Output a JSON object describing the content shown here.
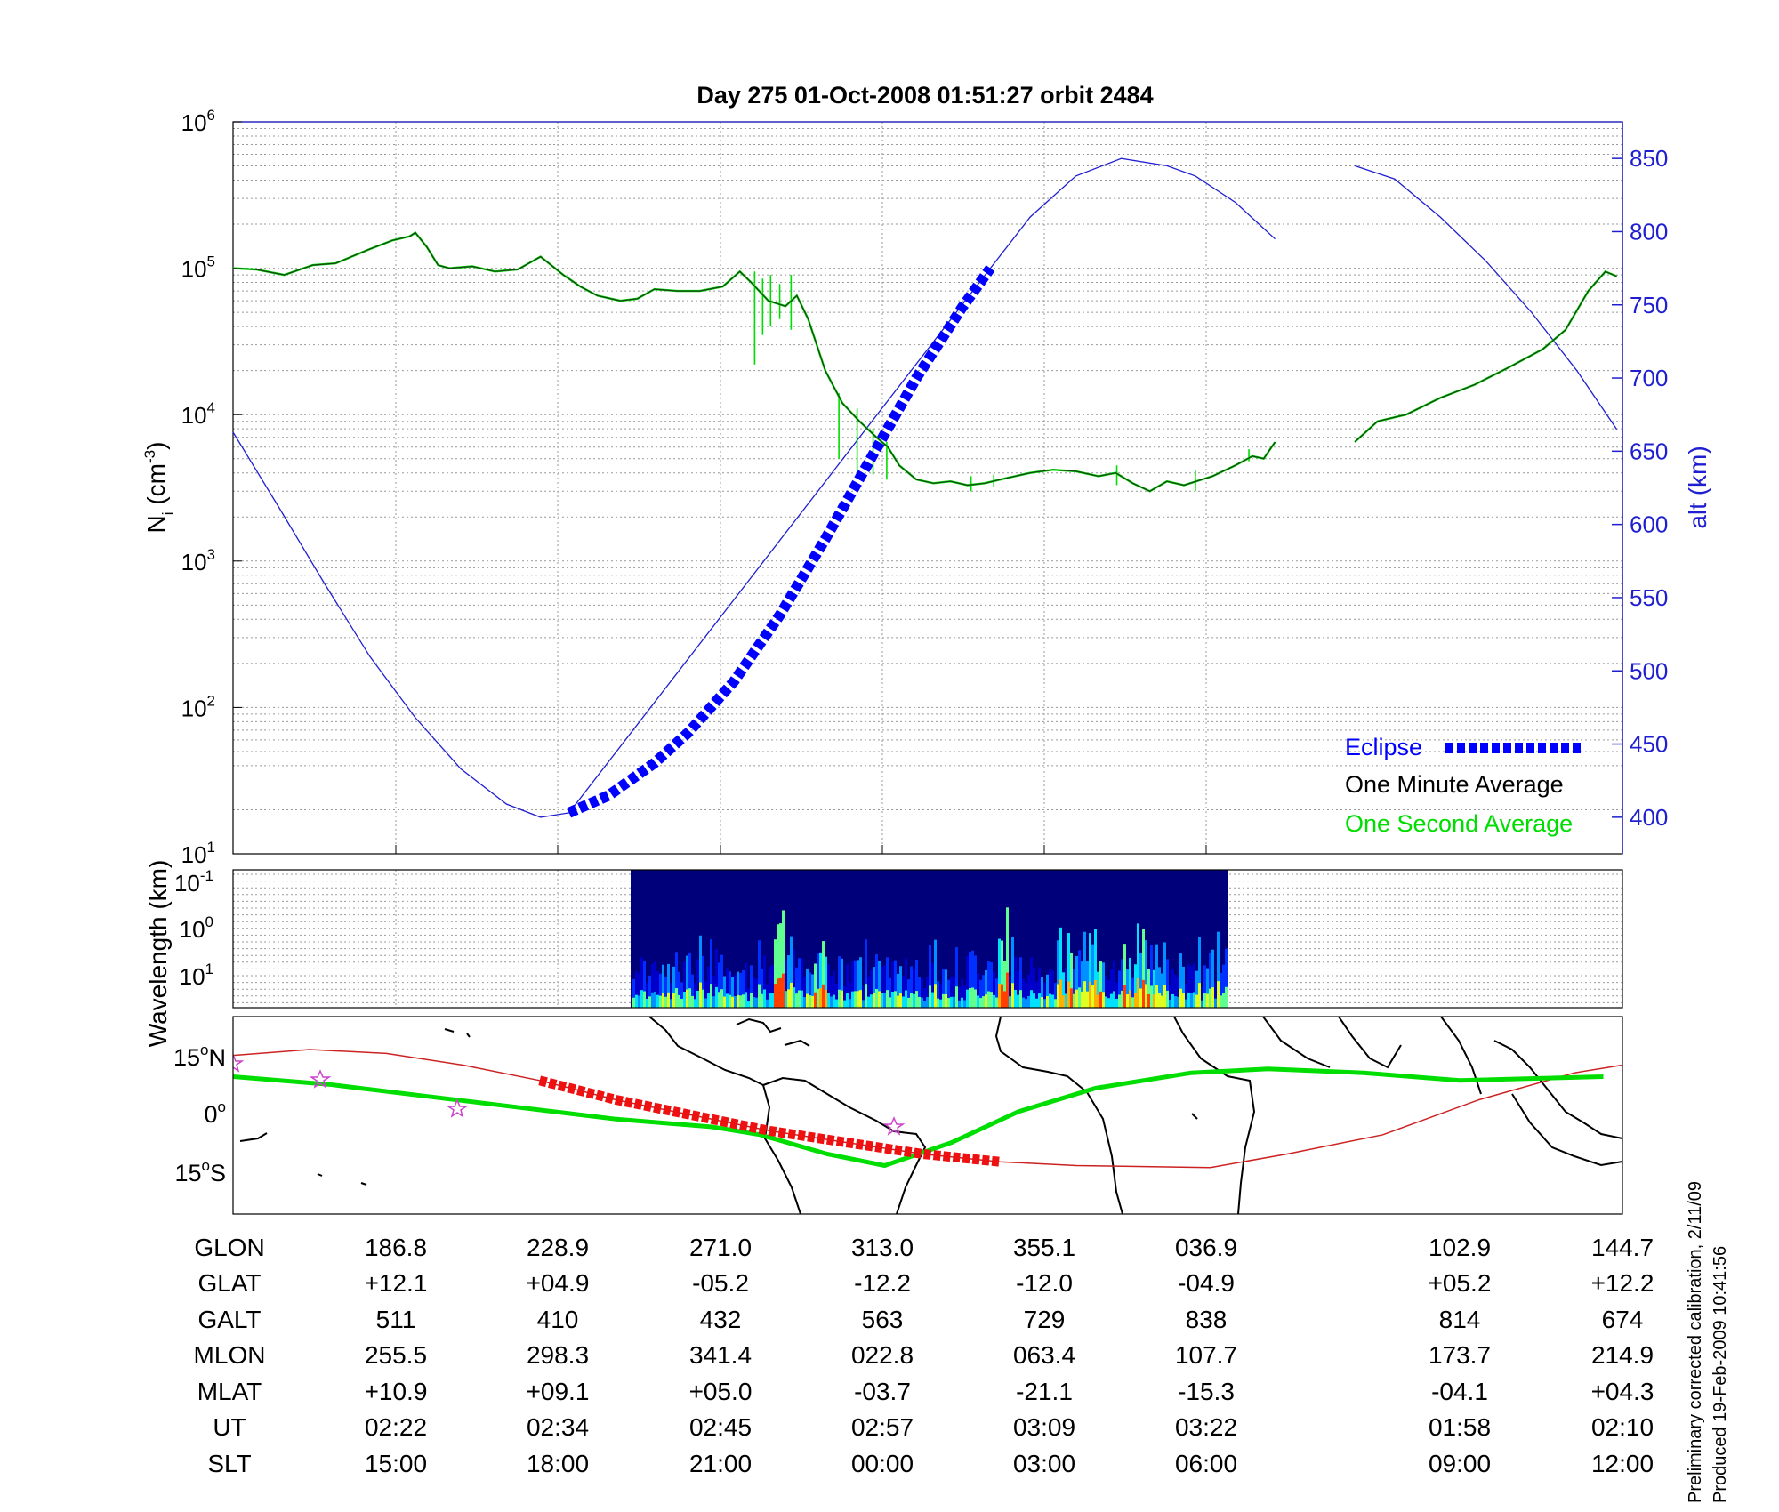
{
  "chart_data": [
    {
      "type": "line",
      "title": "Day 275  01-Oct-2008 01:51:27   orbit 2484",
      "ylabel": "N_i (cm^-3)",
      "ylabel_left_main": "N",
      "ylabel_left_sub": "i",
      "ylabel_left_unit": " (cm",
      "ylabel_left_exp": "-3",
      "ylabel_left_close": ")",
      "y_scale": "log",
      "ylim": [
        10,
        1000000
      ],
      "y_ticks": [
        {
          "base": "10",
          "exp": "6",
          "value": 1000000
        },
        {
          "base": "10",
          "exp": "5",
          "value": 100000
        },
        {
          "base": "10",
          "exp": "4",
          "value": 10000
        },
        {
          "base": "10",
          "exp": "3",
          "value": 1000
        },
        {
          "base": "10",
          "exp": "2",
          "value": 100
        },
        {
          "base": "10",
          "exp": "1",
          "value": 10
        }
      ],
      "y2label": "alt (km)",
      "y2lim": [
        375,
        875
      ],
      "y2_ticks": [
        "400",
        "450",
        "500",
        "550",
        "600",
        "650",
        "700",
        "750",
        "800",
        "850"
      ],
      "x_range_minutes": [
        0,
        102
      ],
      "gap_minutes": [
        91.5,
        98.5
      ],
      "series": [
        {
          "name": "Eclipse",
          "color": "#0000ff",
          "axis": "alt",
          "points_min_km": [
            [
              29.5,
              403
            ],
            [
              33,
              415
            ],
            [
              37,
              437
            ],
            [
              40,
              458
            ],
            [
              44,
              493
            ],
            [
              48,
              538
            ],
            [
              52,
              590
            ],
            [
              56,
              645
            ],
            [
              60,
              700
            ],
            [
              64,
              748
            ],
            [
              66.5,
              775
            ]
          ]
        },
        {
          "name": "One Minute Average",
          "color": "#000000",
          "axis": "density",
          "points_min_density": [
            [
              0,
              100000
            ],
            [
              2,
              98000
            ],
            [
              4.5,
              90000
            ],
            [
              7,
              105000
            ],
            [
              9,
              108000
            ],
            [
              12,
              135000
            ],
            [
              14,
              155000
            ],
            [
              15.5,
              165000
            ],
            [
              16,
              175000
            ],
            [
              17,
              140000
            ],
            [
              18,
              105000
            ],
            [
              19,
              100000
            ],
            [
              21,
              103000
            ],
            [
              23,
              95000
            ],
            [
              25,
              98000
            ],
            [
              27,
              120000
            ],
            [
              29,
              90000
            ],
            [
              30.5,
              75000
            ],
            [
              32,
              65000
            ],
            [
              34,
              60000
            ],
            [
              35.5,
              62000
            ],
            [
              37,
              72000
            ],
            [
              39,
              70000
            ],
            [
              41,
              70000
            ],
            [
              43,
              75000
            ],
            [
              44.5,
              95000
            ],
            [
              45.5,
              80000
            ],
            [
              47,
              60000
            ],
            [
              48.5,
              55000
            ],
            [
              49.5,
              65000
            ],
            [
              50.5,
              45000
            ],
            [
              52,
              20000
            ],
            [
              53.5,
              12000
            ],
            [
              55,
              9000
            ],
            [
              56.5,
              7000
            ],
            [
              57.5,
              6000
            ],
            [
              58.5,
              4500
            ],
            [
              60,
              3600
            ],
            [
              61.5,
              3400
            ],
            [
              63,
              3500
            ],
            [
              64.5,
              3300
            ],
            [
              66,
              3400
            ],
            [
              68,
              3700
            ],
            [
              70,
              4000
            ],
            [
              72,
              4200
            ],
            [
              74,
              4100
            ],
            [
              76,
              3800
            ],
            [
              77.5,
              4000
            ],
            [
              79,
              3400
            ],
            [
              80.5,
              3000
            ],
            [
              82,
              3500
            ],
            [
              83.5,
              3300
            ],
            [
              86,
              3800
            ],
            [
              88,
              4500
            ],
            [
              89.5,
              5200
            ],
            [
              90.5,
              5000
            ],
            [
              91.5,
              6500
            ]
          ]
        },
        {
          "name": "One Minute Average (cont.)",
          "color": "#000000",
          "axis": "density",
          "points_min_density": [
            [
              98.5,
              6500
            ],
            [
              100.5,
              9000
            ],
            [
              103,
              10000
            ],
            [
              106,
              13000
            ],
            [
              109,
              16000
            ],
            [
              112,
              21000
            ],
            [
              115,
              28000
            ],
            [
              117,
              38000
            ],
            [
              119,
              70000
            ],
            [
              120.5,
              95000
            ],
            [
              121.5,
              88000
            ]
          ]
        },
        {
          "name": "One Second Average",
          "color": "#00dd00",
          "axis": "density",
          "spikes_min_density": [
            [
              45.8,
              95000,
              22000
            ],
            [
              46.5,
              85000,
              35000
            ],
            [
              47.2,
              90000,
              40000
            ],
            [
              48,
              78000,
              45000
            ],
            [
              49,
              90000,
              38000
            ],
            [
              53.2,
              14000,
              5000
            ],
            [
              54.8,
              11000,
              4200
            ],
            [
              56.2,
              8000,
              3900
            ],
            [
              57.4,
              6500,
              3600
            ],
            [
              64.8,
              3800,
              3000
            ],
            [
              66.8,
              3900,
              3200
            ],
            [
              77.6,
              4500,
              3300
            ],
            [
              84.5,
              4200,
              3000
            ],
            [
              89.2,
              5800,
              4800
            ]
          ]
        },
        {
          "name": "Altitude",
          "color": "#1f1fd0",
          "axis": "alt",
          "points_min_km": [
            [
              0,
              663
            ],
            [
              4,
              612
            ],
            [
              8,
              560
            ],
            [
              12,
              510
            ],
            [
              16,
              468
            ],
            [
              20,
              433
            ],
            [
              24,
              409
            ],
            [
              27,
              400
            ],
            [
              29.5,
              403
            ],
            [
              66.5,
              775
            ],
            [
              70,
              810
            ],
            [
              74,
              838
            ],
            [
              78,
              850
            ],
            [
              82,
              845
            ],
            [
              84.5,
              838
            ],
            [
              88,
              820
            ],
            [
              91.5,
              795
            ]
          ],
          "points_min_km_after_gap": [
            [
              98.5,
              845
            ],
            [
              102,
              836
            ],
            [
              106,
              810
            ],
            [
              110,
              780
            ],
            [
              114,
              745
            ],
            [
              118,
              705
            ],
            [
              121.5,
              665
            ]
          ]
        }
      ],
      "legend": [
        {
          "label": "Eclipse",
          "color": "#0000ff"
        },
        {
          "label": "One Minute Average",
          "color": "#000000"
        },
        {
          "label": "One Second Average",
          "color": "#00dd00"
        }
      ],
      "legend_placement": "lower-right",
      "grid": true
    },
    {
      "type": "heatmap",
      "ylabel": "Wavelength (km)",
      "y_ticks": [
        {
          "base": "10",
          "exp": "-1"
        },
        {
          "base": "10",
          "exp": "0"
        },
        {
          "base": "10",
          "exp": "1"
        }
      ],
      "colormap": "jet"
    },
    {
      "type": "map",
      "y_ticks": [
        {
          "deg": "15",
          "hem": "N"
        },
        {
          "deg": "0",
          "hem": ""
        },
        {
          "deg": "15",
          "hem": "S"
        }
      ],
      "lat_range": [
        -25,
        25
      ],
      "orbit_track": [
        [
          0,
          15.5
        ],
        [
          8,
          17
        ],
        [
          16,
          16
        ],
        [
          24,
          13
        ],
        [
          32,
          9
        ],
        [
          40,
          4
        ],
        [
          48,
          0
        ],
        [
          56,
          -4
        ],
        [
          64,
          -7
        ],
        [
          72,
          -10
        ],
        [
          80,
          -12
        ],
        [
          88,
          -13
        ],
        [
          95,
          -14
        ],
        [
          102,
          -13.5
        ],
        [
          110,
          -10
        ],
        [
          120,
          -5
        ],
        [
          130,
          4
        ],
        [
          140,
          11
        ],
        [
          145,
          13
        ]
      ],
      "eclipse_track_x": [
        35.5,
        79
      ],
      "magnetic_equator": [
        [
          0,
          10
        ],
        [
          10,
          8
        ],
        [
          20,
          5
        ],
        [
          30,
          2
        ],
        [
          40,
          -1
        ],
        [
          50,
          -3
        ],
        [
          55,
          -5
        ],
        [
          62,
          -10
        ],
        [
          68,
          -13
        ],
        [
          75,
          -7
        ],
        [
          82,
          1
        ],
        [
          90,
          7
        ],
        [
          100,
          11
        ],
        [
          108,
          12
        ],
        [
          118,
          11
        ],
        [
          128,
          9
        ],
        [
          135,
          9.5
        ],
        [
          143,
          10
        ]
      ]
    }
  ],
  "table": {
    "labels": [
      "GLON",
      "GLAT",
      "GALT",
      "MLON",
      "MLAT",
      "UT",
      "SLT"
    ],
    "columns": [
      {
        "values": [
          "186.8",
          "+12.1",
          "511",
          "255.5",
          "+10.9",
          "02:22",
          "15:00"
        ]
      },
      {
        "values": [
          "228.9",
          "+04.9",
          "410",
          "298.3",
          "+09.1",
          "02:34",
          "18:00"
        ]
      },
      {
        "values": [
          "271.0",
          "-05.2",
          "432",
          "341.4",
          "+05.0",
          "02:45",
          "21:00"
        ]
      },
      {
        "values": [
          "313.0",
          "-12.2",
          "563",
          "022.8",
          "-03.7",
          "02:57",
          "00:00"
        ]
      },
      {
        "values": [
          "355.1",
          "-12.0",
          "729",
          "063.4",
          "-21.1",
          "03:09",
          "03:00"
        ]
      },
      {
        "values": [
          "036.9",
          "-04.9",
          "838",
          "107.7",
          "-15.3",
          "03:22",
          "06:00"
        ]
      },
      {
        "values": [
          "102.9",
          "+05.2",
          "814",
          "173.7",
          "-04.1",
          "01:58",
          "09:00"
        ]
      },
      {
        "values": [
          "144.7",
          "+12.2",
          "674",
          "214.9",
          "+04.3",
          "02:10",
          "12:00"
        ]
      }
    ]
  },
  "notes": {
    "line1": "Preliminary corrected calibration, 2/11/09",
    "line2": "Produced 19-Feb-2009 10:41:56"
  },
  "colors": {
    "altitude_axis": "#1f1fd0",
    "eclipse": "#0000ff",
    "one_minute": "#000000",
    "one_second": "#00dd00",
    "orbit_track": "#cc2222",
    "eclipse_on_map": "#ee1111",
    "magnetic_equator": "#00dd00",
    "stars": "#cc44cc"
  }
}
